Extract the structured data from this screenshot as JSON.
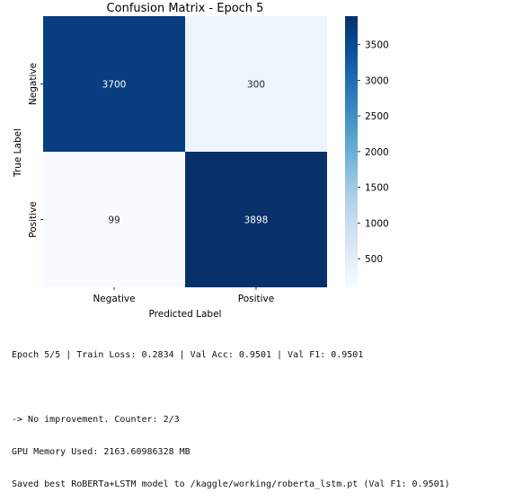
{
  "chart_data": {
    "type": "heatmap",
    "title": "Confusion Matrix - Epoch 5",
    "xlabel": "Predicted Label",
    "ylabel": "True Label",
    "x_categories": [
      "Negative",
      "Positive"
    ],
    "y_categories": [
      "Negative",
      "Positive"
    ],
    "values": [
      [
        3700,
        300
      ],
      [
        99,
        3898
      ]
    ],
    "colormap": "Blues",
    "colorbar": {
      "min": 99,
      "max": 3898,
      "ticks": [
        500,
        1000,
        1500,
        2000,
        2500,
        3000,
        3500
      ],
      "tick_labels": [
        "500",
        "1000",
        "1500",
        "2000",
        "2500",
        "3000",
        "3500"
      ]
    },
    "colors": {
      "low": "#f7fbff",
      "mid": "#6baed6",
      "high": "#08306b"
    }
  },
  "console": {
    "lines": [
      "Epoch 5/5 | Train Loss: 0.2834 | Val Acc: 0.9501 | Val F1: 0.9501",
      "",
      "-> No improvement. Counter: 2/3",
      "GPU Memory Used: 2163.60986328 MB",
      "Saved best RoBERTa+LSTM model to /kaggle/working/roberta_lstm.pt (Val F1: 0.9501)"
    ]
  }
}
